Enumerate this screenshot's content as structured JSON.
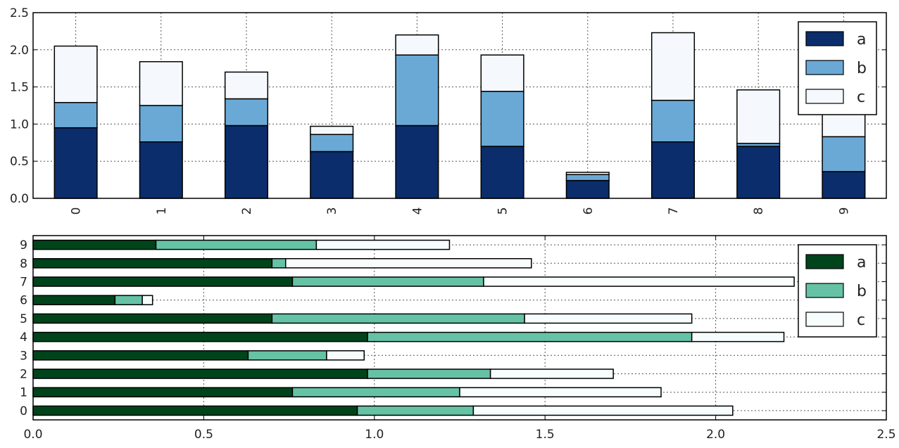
{
  "chart_data": [
    {
      "type": "bar",
      "orientation": "vertical",
      "stacked": true,
      "categories": [
        "0",
        "1",
        "2",
        "3",
        "4",
        "5",
        "6",
        "7",
        "8",
        "9"
      ],
      "series": [
        {
          "name": "a",
          "color": "#0b2d6b",
          "values": [
            0.95,
            0.76,
            0.98,
            0.63,
            0.98,
            0.7,
            0.24,
            0.76,
            0.7,
            0.36
          ]
        },
        {
          "name": "b",
          "color": "#6aa9d6",
          "values": [
            0.34,
            0.49,
            0.36,
            0.23,
            0.95,
            0.74,
            0.08,
            0.56,
            0.04,
            0.47
          ]
        },
        {
          "name": "c",
          "color": "#f5f9fe",
          "values": [
            0.76,
            0.59,
            0.36,
            0.11,
            0.27,
            0.49,
            0.03,
            0.91,
            0.72,
            0.39
          ]
        }
      ],
      "ylim": [
        0,
        2.5
      ],
      "yticks": [
        "0.0",
        "0.5",
        "1.0",
        "1.5",
        "2.0",
        "2.5"
      ],
      "grid": true,
      "legend": "top-right",
      "xlabel": "",
      "ylabel": "",
      "title": ""
    },
    {
      "type": "bar",
      "orientation": "horizontal",
      "stacked": true,
      "categories": [
        "0",
        "1",
        "2",
        "3",
        "4",
        "5",
        "6",
        "7",
        "8",
        "9"
      ],
      "series": [
        {
          "name": "a",
          "color": "#00441b",
          "values": [
            0.95,
            0.76,
            0.98,
            0.63,
            0.98,
            0.7,
            0.24,
            0.76,
            0.7,
            0.36
          ]
        },
        {
          "name": "b",
          "color": "#66c2a4",
          "values": [
            0.34,
            0.49,
            0.36,
            0.23,
            0.95,
            0.74,
            0.08,
            0.56,
            0.04,
            0.47
          ]
        },
        {
          "name": "c",
          "color": "#f7fcfd",
          "values": [
            0.76,
            0.59,
            0.36,
            0.11,
            0.27,
            0.49,
            0.03,
            0.91,
            0.72,
            0.39
          ]
        }
      ],
      "xlim": [
        0,
        2.5
      ],
      "xticks": [
        "0.0",
        "0.5",
        "1.0",
        "1.5",
        "2.0",
        "2.5"
      ],
      "grid": true,
      "legend": "top-right",
      "xlabel": "",
      "ylabel": "",
      "title": ""
    }
  ]
}
